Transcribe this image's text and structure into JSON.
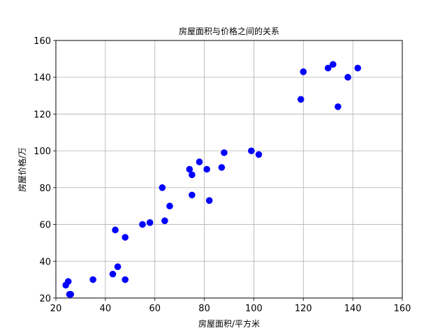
{
  "chart_data": {
    "type": "scatter",
    "title": "房屋面积与价格之间的关系",
    "xlabel": "房屋面积/平方米",
    "ylabel": "房屋价格/万",
    "xlim": [
      20,
      160
    ],
    "ylim": [
      20,
      160
    ],
    "xticks": [
      20,
      40,
      60,
      80,
      100,
      120,
      140,
      160
    ],
    "yticks": [
      20,
      40,
      60,
      80,
      100,
      120,
      140,
      160
    ],
    "grid": true,
    "marker_color": "#0000ff",
    "series": [
      {
        "points": [
          {
            "x": 24,
            "y": 27
          },
          {
            "x": 25,
            "y": 29
          },
          {
            "x": 25.5,
            "y": 22
          },
          {
            "x": 26,
            "y": 22
          },
          {
            "x": 35,
            "y": 30
          },
          {
            "x": 43,
            "y": 33
          },
          {
            "x": 44,
            "y": 57
          },
          {
            "x": 45,
            "y": 37
          },
          {
            "x": 48,
            "y": 53
          },
          {
            "x": 48,
            "y": 30
          },
          {
            "x": 55,
            "y": 60
          },
          {
            "x": 58,
            "y": 61
          },
          {
            "x": 63,
            "y": 80
          },
          {
            "x": 64,
            "y": 62
          },
          {
            "x": 66,
            "y": 70
          },
          {
            "x": 74,
            "y": 90
          },
          {
            "x": 75,
            "y": 87
          },
          {
            "x": 75,
            "y": 76
          },
          {
            "x": 78,
            "y": 94
          },
          {
            "x": 81,
            "y": 90
          },
          {
            "x": 82,
            "y": 73
          },
          {
            "x": 87,
            "y": 91
          },
          {
            "x": 88,
            "y": 99
          },
          {
            "x": 99,
            "y": 100
          },
          {
            "x": 102,
            "y": 98
          },
          {
            "x": 119,
            "y": 128
          },
          {
            "x": 120,
            "y": 143
          },
          {
            "x": 130,
            "y": 145
          },
          {
            "x": 132,
            "y": 147
          },
          {
            "x": 134,
            "y": 124
          },
          {
            "x": 138,
            "y": 140
          },
          {
            "x": 142,
            "y": 145
          }
        ]
      }
    ]
  }
}
